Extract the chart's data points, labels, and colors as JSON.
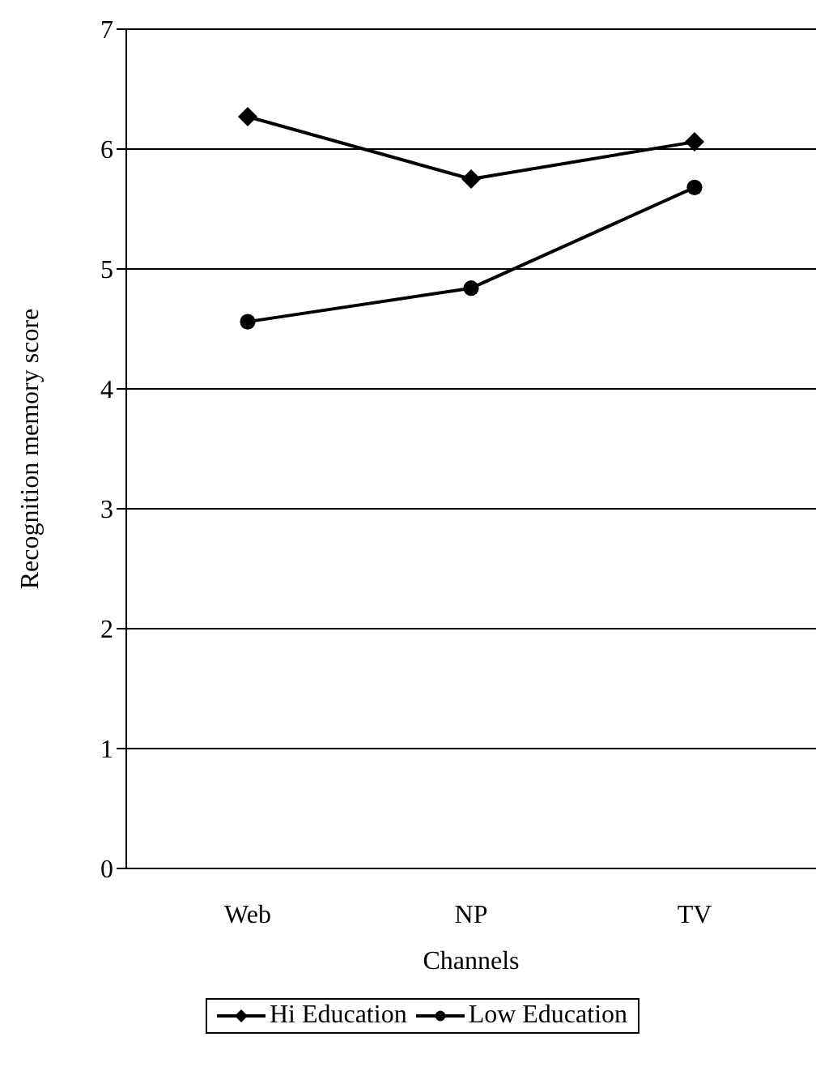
{
  "chart_data": {
    "type": "line",
    "xlabel": "Channels",
    "ylabel": "Recognition memory score",
    "categories": [
      "Web",
      "NP",
      "TV"
    ],
    "series": [
      {
        "name": "Hi Education",
        "color": "#000000",
        "marker": "diamond",
        "values": [
          6.27,
          5.75,
          6.06
        ]
      },
      {
        "name": "Low Education",
        "color": "#000000",
        "marker": "circle",
        "values": [
          4.56,
          4.84,
          5.68
        ]
      }
    ],
    "ylim": [
      0,
      7
    ],
    "yticks": [
      0,
      1,
      2,
      3,
      4,
      5,
      6,
      7
    ],
    "grid": "y",
    "legend": "bottom",
    "line_style": "solid"
  }
}
